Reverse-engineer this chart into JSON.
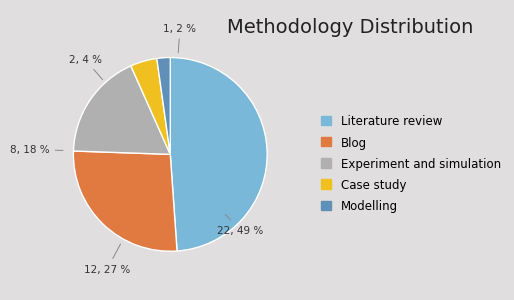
{
  "title": "Methodology Distribution",
  "labels": [
    "Literature review",
    "Blog",
    "Experiment and simulation",
    "Case study",
    "Modelling"
  ],
  "values": [
    22,
    12,
    8,
    2,
    1
  ],
  "colors": [
    "#7ab8d9",
    "#e07a40",
    "#b0b0b0",
    "#f0c020",
    "#6090b8"
  ],
  "autopct_labels": [
    "22, 49 %",
    "12, 27 %",
    "8, 18 %",
    "2, 4 %",
    "1, 2 %"
  ],
  "title_fontsize": 14,
  "legend_fontsize": 8.5,
  "background_color": "#e0dede",
  "startangle": 90
}
